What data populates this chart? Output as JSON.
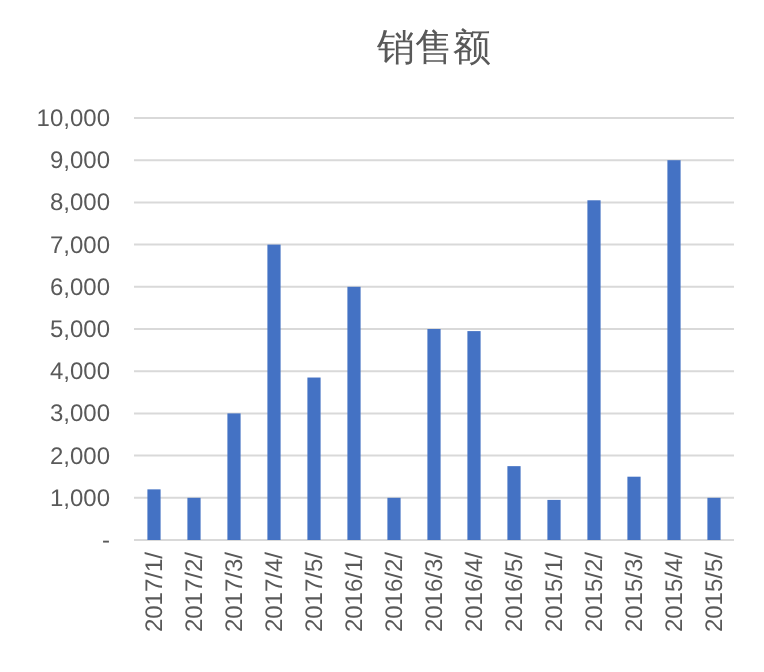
{
  "chart_data": {
    "type": "bar",
    "title": "销售额",
    "categories": [
      "2017/1/",
      "2017/2/",
      "2017/3/",
      "2017/4/",
      "2017/5/",
      "2016/1/",
      "2016/2/",
      "2016/3/",
      "2016/4/",
      "2016/5/",
      "2015/1/",
      "2015/2/",
      "2015/3/",
      "2015/4/",
      "2015/5/"
    ],
    "values": [
      1200,
      1000,
      3000,
      7000,
      3850,
      6000,
      1000,
      5000,
      4950,
      1750,
      950,
      8050,
      1500,
      9000,
      1000
    ],
    "color": "#4472c4",
    "ylim": [
      0,
      10000
    ],
    "yticks": [
      {
        "value": 0,
        "label": "-"
      },
      {
        "value": 1000,
        "label": "1,000"
      },
      {
        "value": 2000,
        "label": "2,000"
      },
      {
        "value": 3000,
        "label": "3,000"
      },
      {
        "value": 4000,
        "label": "4,000"
      },
      {
        "value": 5000,
        "label": "5,000"
      },
      {
        "value": 6000,
        "label": "6,000"
      },
      {
        "value": 7000,
        "label": "7,000"
      },
      {
        "value": 8000,
        "label": "8,000"
      },
      {
        "value": 9000,
        "label": "9,000"
      },
      {
        "value": 10000,
        "label": "10,000"
      }
    ],
    "grid": "y"
  }
}
